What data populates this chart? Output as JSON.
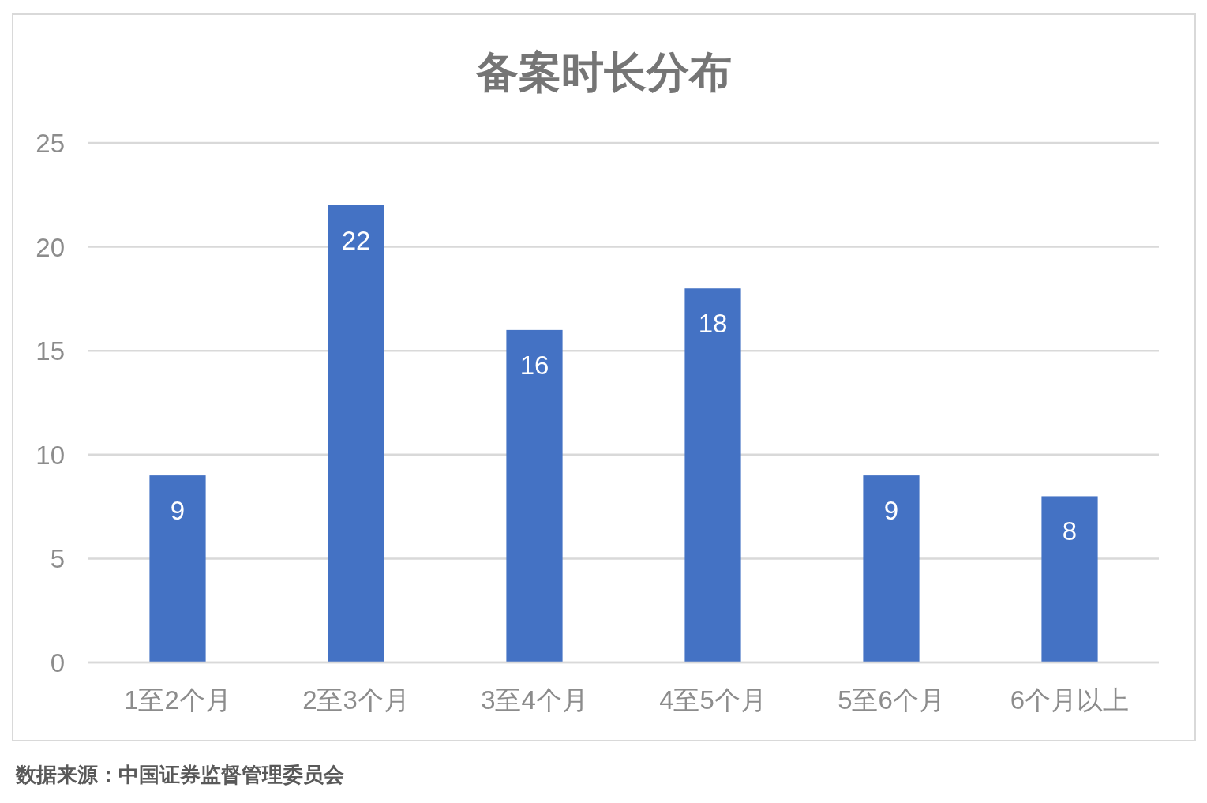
{
  "chart_data": {
    "type": "bar",
    "title": "备案时长分布",
    "categories": [
      "1至2个月",
      "2至3个月",
      "3至4个月",
      "4至5个月",
      "5至6个月",
      "6个月以上"
    ],
    "values": [
      9,
      22,
      16,
      18,
      9,
      8
    ],
    "color": "#4472c4",
    "ylim": [
      0,
      25
    ],
    "yticks": [
      0,
      5,
      10,
      15,
      20,
      25
    ],
    "grid": "y",
    "data_labels": true,
    "annotations": [
      "数据来源：中国证券监督管理委员会"
    ]
  }
}
